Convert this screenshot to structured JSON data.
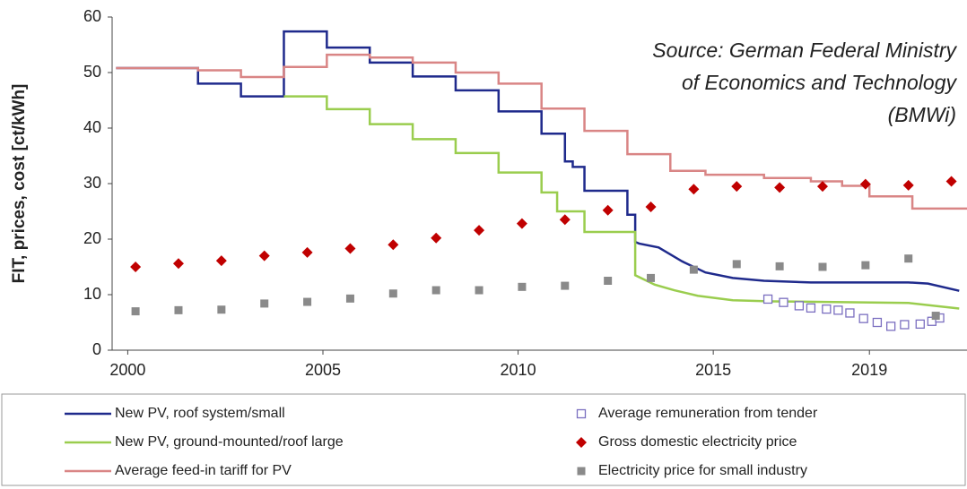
{
  "chart_data": {
    "type": "line",
    "ylabel": "FIT, prices, cost [ct/kWh]",
    "annotation": [
      "Source: German Federal Ministry",
      "of Economics and Technology",
      "(BMWi)"
    ],
    "xlim": [
      1999.6,
      2021.5
    ],
    "xticks": [
      2000,
      2005,
      2010,
      2015,
      2019
    ],
    "ylim": [
      0,
      60
    ],
    "yticks": [
      0,
      10,
      20,
      30,
      40,
      50,
      60
    ],
    "grid": false,
    "series": [
      {
        "name": "New PV, roof system/small",
        "type": "line",
        "color": "#1f2a8c",
        "x": [
          1999.7,
          2001.8,
          2001.8,
          2002.9,
          2002.9,
          2004.0,
          2004.0,
          2005.1,
          2005.1,
          2006.2,
          2006.2,
          2007.3,
          2007.3,
          2008.4,
          2008.4,
          2009.5,
          2009.5,
          2010.6,
          2010.6,
          2011.2,
          2011.2,
          2011.4,
          2011.4,
          2011.7,
          2011.7,
          2012.8,
          2012.8,
          2013.0,
          2013.0,
          2013.1,
          2013.6,
          2014.2,
          2014.8,
          2015.5,
          2016.3,
          2017.5,
          2020.0,
          2020.5,
          2021.3
        ],
        "values": [
          50.8,
          50.8,
          48,
          48,
          45.7,
          45.7,
          57.4,
          57.4,
          54.5,
          54.5,
          51.8,
          51.8,
          49.3,
          49.3,
          46.8,
          46.8,
          43,
          43,
          39,
          39,
          34,
          34,
          33,
          33,
          28.7,
          28.7,
          24.4,
          24.4,
          19.5,
          19.2,
          18.5,
          16,
          14,
          13,
          12.5,
          12.2,
          12.2,
          12,
          10.7
        ]
      },
      {
        "name": "New PV, ground-mounted/roof large",
        "type": "line",
        "color": "#9acd4e",
        "x": [
          2004.0,
          2005.1,
          2005.1,
          2006.2,
          2006.2,
          2007.3,
          2007.3,
          2008.4,
          2008.4,
          2009.5,
          2009.5,
          2010.6,
          2010.6,
          2011.0,
          2011.0,
          2011.7,
          2011.7,
          2013.0,
          2013.0,
          2013.5,
          2014.0,
          2014.6,
          2015.5,
          2016.5,
          2020.0,
          2021.3
        ],
        "values": [
          45.7,
          45.7,
          43.4,
          43.4,
          40.7,
          40.7,
          38,
          38,
          35.5,
          35.5,
          32,
          32,
          28.4,
          28.4,
          25,
          25,
          21.3,
          21.3,
          13.5,
          11.8,
          10.8,
          9.8,
          9,
          8.8,
          8.5,
          7.5
        ]
      },
      {
        "name": "Average feed-in tariff for PV",
        "type": "line",
        "color": "#d98585",
        "x": [
          1999.7,
          2001.8,
          2001.8,
          2002.9,
          2002.9,
          2004.0,
          2004.0,
          2005.1,
          2005.1,
          2006.2,
          2006.2,
          2007.3,
          2007.3,
          2008.4,
          2008.4,
          2009.5,
          2009.5,
          2010.6,
          2010.6,
          2011.7,
          2011.7,
          2012.8,
          2012.8,
          2013.9,
          2013.9,
          2014.8,
          2014.8,
          2016.3,
          2016.3,
          2017.5,
          2017.5,
          2018.3,
          2018.3,
          2019.0,
          2019.0,
          2020.1,
          2020.1,
          2021.5
        ],
        "values": [
          50.8,
          50.8,
          50.4,
          50.4,
          49.2,
          49.2,
          51,
          51,
          53.2,
          53.2,
          52.7,
          52.7,
          51.8,
          51.8,
          50,
          50,
          48,
          48,
          43.5,
          43.5,
          39.5,
          39.5,
          35.3,
          35.3,
          32.3,
          32.3,
          31.6,
          31.6,
          31,
          31,
          30.4,
          30.4,
          29.6,
          29.6,
          27.7,
          27.7,
          25.5,
          25.5
        ]
      },
      {
        "name": "Average remuneration from tender",
        "type": "scatter",
        "marker": "open-square",
        "color": "#7b6fc0",
        "x": [
          2016.4,
          2016.8,
          2017.2,
          2017.5,
          2017.9,
          2018.2,
          2018.5,
          2018.85,
          2019.2,
          2019.55,
          2019.9,
          2020.3,
          2020.6,
          2020.8
        ],
        "values": [
          9.2,
          8.6,
          8,
          7.6,
          7.4,
          7.2,
          6.7,
          5.7,
          5,
          4.3,
          4.6,
          4.7,
          5.2,
          5.8
        ]
      },
      {
        "name": "Gross domestic electricity price",
        "type": "scatter",
        "marker": "diamond",
        "color": "#c00000",
        "x": [
          2000.2,
          2001.3,
          2002.4,
          2003.5,
          2004.6,
          2005.7,
          2006.8,
          2007.9,
          2009.0,
          2010.1,
          2011.2,
          2012.3,
          2013.4,
          2014.5,
          2015.6,
          2016.7,
          2017.8,
          2018.9,
          2020.0,
          2021.1
        ],
        "values": [
          15,
          15.6,
          16.1,
          17,
          17.6,
          18.3,
          19,
          20.2,
          21.6,
          22.8,
          23.5,
          25.2,
          25.8,
          29,
          29.5,
          29.3,
          29.5,
          29.9,
          29.7,
          30.4
        ]
      },
      {
        "name": "Electricity price for small industry",
        "type": "scatter",
        "marker": "square",
        "color": "#8a8a8a",
        "x": [
          2000.2,
          2001.3,
          2002.4,
          2003.5,
          2004.6,
          2005.7,
          2006.8,
          2007.9,
          2009.0,
          2010.1,
          2011.2,
          2012.3,
          2013.4,
          2014.5,
          2015.6,
          2016.7,
          2017.8,
          2018.9,
          2020.0,
          2020.7
        ],
        "values": [
          7,
          7.2,
          7.3,
          8.4,
          8.7,
          9.3,
          10.2,
          10.8,
          10.8,
          11.4,
          11.6,
          12.5,
          13,
          14.5,
          15.5,
          15.1,
          15,
          15.3,
          16.5,
          6.2
        ]
      }
    ]
  }
}
